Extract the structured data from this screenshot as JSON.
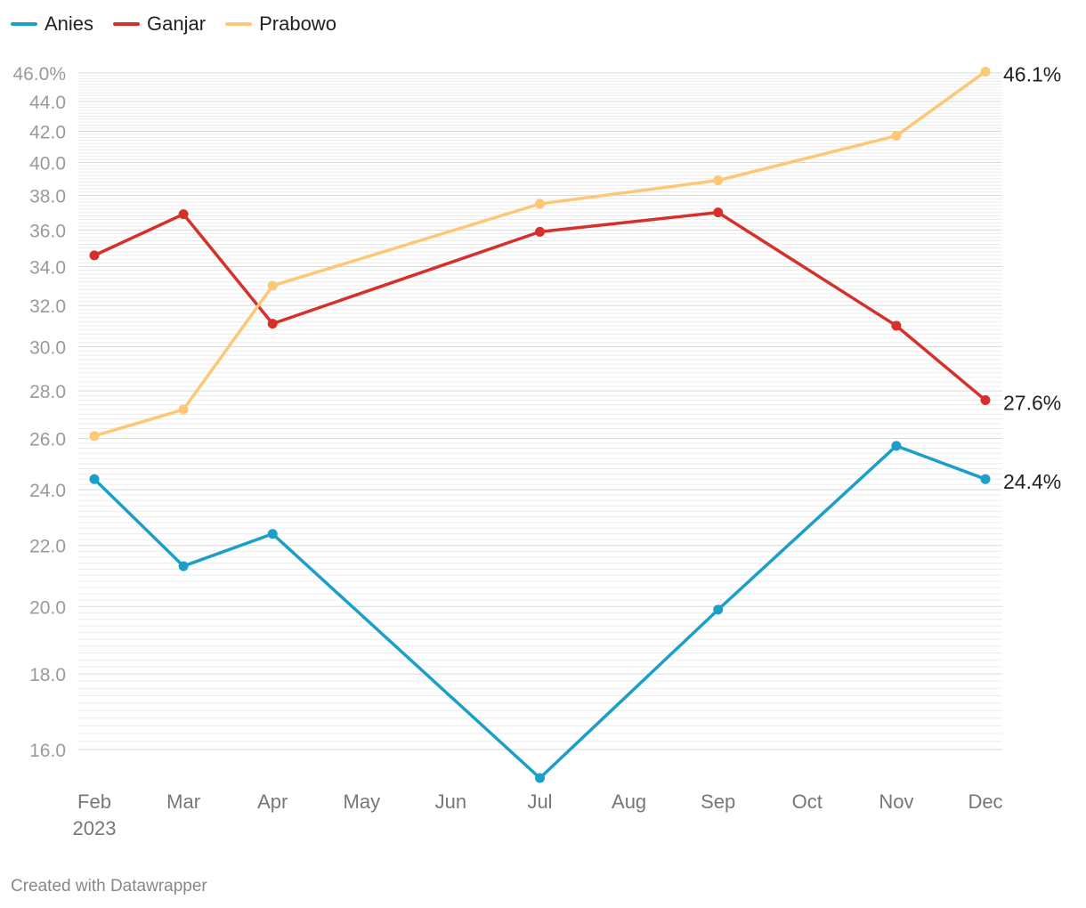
{
  "chart_data": {
    "type": "line",
    "y_scale": "log",
    "x": [
      "Feb",
      "Mar",
      "Apr",
      "May",
      "Jun",
      "Jul",
      "Aug",
      "Sep",
      "Oct",
      "Nov",
      "Dec"
    ],
    "x_year_label": "2023",
    "ylim": [
      15.3,
      46.0
    ],
    "y_ticks": [
      "46.0%",
      "44.0",
      "42.0",
      "40.0",
      "38.0",
      "36.0",
      "34.0",
      "32.0",
      "30.0",
      "28.0",
      "26.0",
      "24.0",
      "22.0",
      "20.0",
      "18.0",
      "16.0"
    ],
    "y_tick_values": [
      46,
      44,
      42,
      40,
      38,
      36,
      34,
      32,
      30,
      28,
      26,
      24,
      22,
      20,
      18,
      16
    ],
    "legend_position": "top-left",
    "series": [
      {
        "name": "Anies",
        "color": "#1a9fc9",
        "points": [
          {
            "x": "Feb",
            "y": 24.4
          },
          {
            "x": "Mar",
            "y": 21.3
          },
          {
            "x": "Apr",
            "y": 22.4
          },
          {
            "x": "Jul",
            "y": 15.3
          },
          {
            "x": "Sep",
            "y": 19.9
          },
          {
            "x": "Nov",
            "y": 25.7
          },
          {
            "x": "Dec",
            "y": 24.4
          }
        ],
        "end_label": "24.4%"
      },
      {
        "name": "Ganjar",
        "color": "#d7302b",
        "points": [
          {
            "x": "Feb",
            "y": 34.6
          },
          {
            "x": "Mar",
            "y": 36.9
          },
          {
            "x": "Apr",
            "y": 31.1
          },
          {
            "x": "Jul",
            "y": 35.9
          },
          {
            "x": "Sep",
            "y": 37.0
          },
          {
            "x": "Nov",
            "y": 31.0
          },
          {
            "x": "Dec",
            "y": 27.6
          }
        ],
        "end_label": "27.6%"
      },
      {
        "name": "Prabowo",
        "color": "#fcc875",
        "points": [
          {
            "x": "Feb",
            "y": 26.1
          },
          {
            "x": "Mar",
            "y": 27.2
          },
          {
            "x": "Apr",
            "y": 33.0
          },
          {
            "x": "Jul",
            "y": 37.5
          },
          {
            "x": "Sep",
            "y": 38.9
          },
          {
            "x": "Nov",
            "y": 41.7
          },
          {
            "x": "Dec",
            "y": 46.1
          }
        ],
        "end_label": "46.1%"
      }
    ]
  },
  "footer": {
    "credit": "Created with Datawrapper"
  }
}
